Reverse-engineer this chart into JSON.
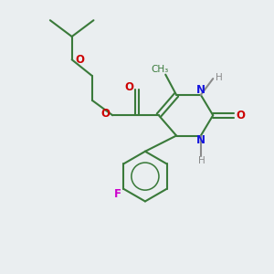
{
  "bg_color": "#eaeef0",
  "bond_color": "#3a7a3a",
  "n_color": "#1414dd",
  "o_color": "#cc0000",
  "f_color": "#cc00cc",
  "h_color": "#8a8a8a",
  "lw": 1.5,
  "figsize": [
    3.0,
    3.0
  ],
  "dpi": 100,
  "xlim": [
    0,
    10
  ],
  "ylim": [
    0,
    10
  ]
}
